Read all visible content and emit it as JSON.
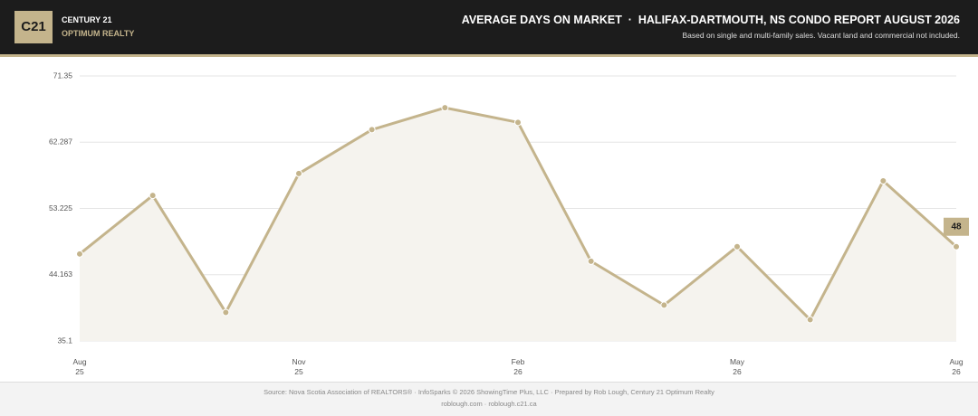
{
  "header": {
    "logo": "C21",
    "brand": "CENTURY 21",
    "brand_sub": "OPTIMUM REALTY"
  },
  "chart_data": {
    "type": "line",
    "title": "AVERAGE DAYS ON MARKET  ·  HALIFAX-DARTMOUTH, NS CONDO REPORT AUGUST 2026",
    "subtitle": "Based on single and multi-family sales. Vacant land and commercial not included.",
    "categories": [
      [
        "Aug",
        "25"
      ],
      null,
      null,
      [
        "Nov",
        "25"
      ],
      null,
      null,
      [
        "Feb",
        "26"
      ],
      null,
      null,
      [
        "May",
        "26"
      ],
      null,
      null,
      [
        "Aug",
        "26"
      ]
    ],
    "values": [
      47,
      55,
      39,
      58,
      64,
      67,
      65,
      46,
      40,
      48,
      38,
      57,
      48
    ],
    "color": "#c4b48c",
    "ylim": [
      35.1,
      71.35
    ],
    "yticks": [
      35.1,
      44.163,
      53.225,
      62.287,
      71.35
    ],
    "grid": true
  },
  "footer": {
    "source": "Source: Nova Scotia Association of REALTORS® · InfoSparks © 2026 ShowingTime Plus, LLC · Prepared by Rob Lough, Century 21 Optimum Realty",
    "links": "roblough.com · roblough.c21.ca"
  }
}
